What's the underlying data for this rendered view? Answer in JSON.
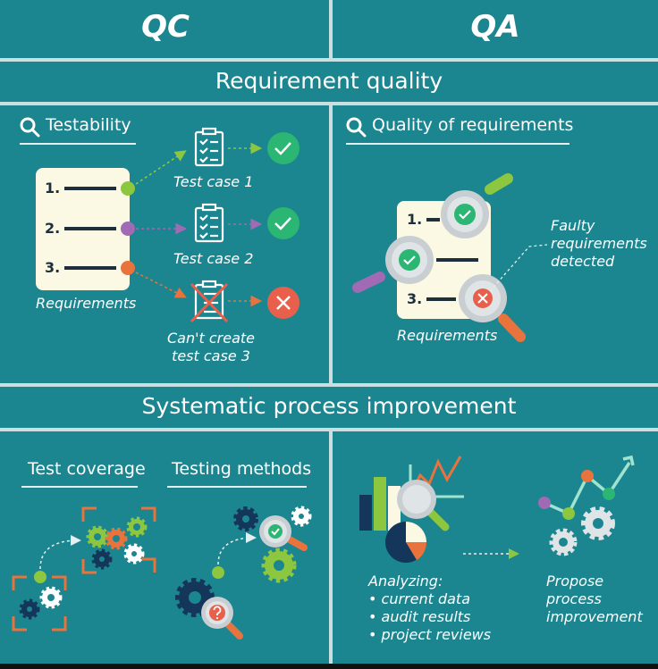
{
  "columns": {
    "left": "QC",
    "right": "QA"
  },
  "band1": "Requirement quality",
  "band2": "Systematic process improvement",
  "qc_req": {
    "heading": "Testability",
    "list_numbers": [
      "1.",
      "2.",
      "3."
    ],
    "doc_caption": "Requirements",
    "case1": "Test case 1",
    "case2": "Test case 2",
    "case3_line1": "Can't create",
    "case3_line2": "test case 3"
  },
  "qa_req": {
    "heading": "Quality of requirements",
    "list_numbers": [
      "1.",
      "2.",
      "3."
    ],
    "doc_caption": "Requirements",
    "faulty": [
      "Faulty",
      "requirements",
      "detected"
    ]
  },
  "qc_proc": {
    "heading_left": "Test coverage",
    "heading_right": "Testing methods"
  },
  "qa_proc": {
    "analyze_title": "Analyzing:",
    "analyze_items": [
      "• current data",
      "• audit results",
      "• project reviews"
    ],
    "propose": [
      "Propose",
      "process",
      "improvement"
    ]
  },
  "colors": {
    "background": "#1b8690",
    "divider": "#c9dfe2",
    "green": "#8dc63f",
    "purple": "#a06ab4",
    "orange": "#e8733c",
    "check_green": "#2bb673",
    "cross_red": "#e8604c",
    "navy": "#14365a",
    "paper": "#fbf8e3"
  },
  "icons": [
    "search-icon",
    "clipboard-icon",
    "check-circle-icon",
    "cross-circle-icon",
    "magnifier-icon",
    "gear-icon",
    "bar-chart-icon",
    "line-chart-icon",
    "pie-chart-icon",
    "question-icon"
  ]
}
